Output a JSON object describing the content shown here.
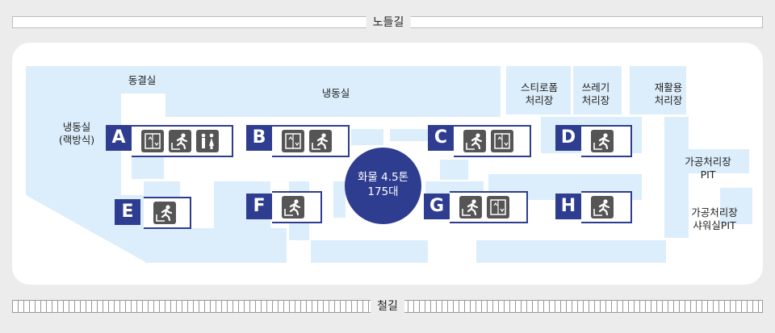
{
  "top_road": {
    "label": "노들길"
  },
  "bottom_road": {
    "label": "철길"
  },
  "rooms": {
    "freezer_rack": "냉동실\n(랙방식)",
    "quick_freeze": "동결실",
    "freezer": "냉동실",
    "styrofoam": "스티로폼\n처리장",
    "waste": "쓰레기\n처리장",
    "recycle": "재활용\n처리장",
    "processing_pit": "가공처리장 PIT",
    "shower_pit": "가공처리장\n샤워실PIT"
  },
  "truck": {
    "line1": "화물 4.5톤",
    "line2": "175대"
  },
  "docks": [
    {
      "letter": "A",
      "icons": [
        "elevator-icon",
        "emergency-exit-icon",
        "restroom-icon"
      ]
    },
    {
      "letter": "B",
      "icons": [
        "elevator-icon",
        "emergency-exit-icon"
      ]
    },
    {
      "letter": "C",
      "icons": [
        "emergency-exit-icon",
        "elevator-icon"
      ]
    },
    {
      "letter": "D",
      "icons": [
        "emergency-exit-icon"
      ]
    },
    {
      "letter": "E",
      "icons": [
        "emergency-exit-icon"
      ]
    },
    {
      "letter": "F",
      "icons": [
        "emergency-exit-icon"
      ]
    },
    {
      "letter": "G",
      "icons": [
        "emergency-exit-icon",
        "elevator-icon"
      ]
    },
    {
      "letter": "H",
      "icons": [
        "emergency-exit-icon"
      ]
    }
  ],
  "colors": {
    "dock_accent": "#2e3d8f",
    "room_fill": "#dceefb",
    "icon_bg": "#555555"
  }
}
